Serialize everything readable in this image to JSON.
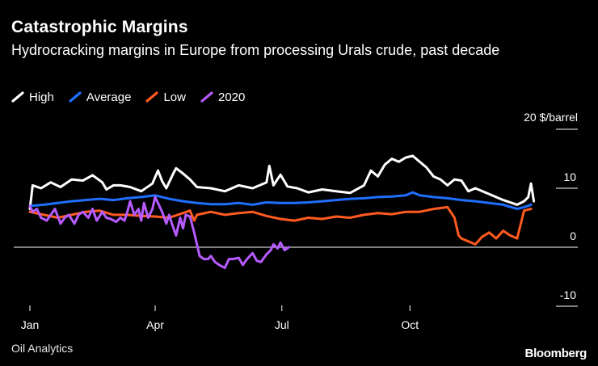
{
  "header": {
    "title": "Catastrophic Margins",
    "subtitle": "Hydrocracking margins in Europe from processing Urals crude, past decade"
  },
  "footer": {
    "source": "Oil Analytics",
    "brand": "Bloomberg"
  },
  "colors": {
    "background": "#000000",
    "high": "#ffffff",
    "average": "#1f6fff",
    "low": "#ff5a1f",
    "y2020": "#b65bff",
    "grid": "#ffffff"
  },
  "chart_data": {
    "type": "line",
    "title": "Catastrophic Margins",
    "subtitle": "Hydrocracking margins in Europe from processing Urals crude, past decade",
    "unit_label": "20 $/barrel",
    "x_ticks": [
      "Jan",
      "Apr",
      "Jul",
      "Oct"
    ],
    "x_tick_days": [
      0,
      90,
      181,
      273
    ],
    "xlim": [
      0,
      364
    ],
    "y_ticks": [
      {
        "value": 10,
        "label": "10"
      },
      {
        "value": 0,
        "label": "0"
      },
      {
        "value": -10,
        "label": "-10"
      }
    ],
    "ylim": [
      -10,
      20
    ],
    "zero_line": true,
    "legend_position": "top-left",
    "series": [
      {
        "name": "High",
        "color_key": "high",
        "x": [
          0,
          2,
          8,
          15,
          22,
          30,
          38,
          45,
          52,
          55,
          60,
          65,
          72,
          80,
          88,
          92,
          95,
          98,
          103,
          105,
          110,
          115,
          120,
          130,
          140,
          150,
          160,
          165,
          170,
          172,
          175,
          180,
          185,
          192,
          200,
          210,
          220,
          230,
          240,
          245,
          250,
          255,
          260,
          265,
          270,
          275,
          280,
          285,
          290,
          295,
          300,
          305,
          310,
          315,
          320,
          330,
          340,
          350,
          355,
          358,
          360,
          362
        ],
        "values": [
          6.5,
          10.5,
          10,
          11,
          10.2,
          11.5,
          11.3,
          12.2,
          11,
          9.8,
          10.5,
          10.5,
          10.2,
          9.5,
          10.8,
          13,
          11.2,
          10,
          12.5,
          13.4,
          12.5,
          11.5,
          10.2,
          10,
          9.5,
          10.5,
          10,
          10.5,
          11,
          13.8,
          10.5,
          12.3,
          10.3,
          10,
          9.3,
          9.8,
          9.5,
          9.2,
          10.5,
          13,
          12,
          14,
          15,
          14.5,
          15.2,
          15.5,
          14.5,
          13.5,
          12,
          11.5,
          10.5,
          11.5,
          11.3,
          9.5,
          10,
          9,
          8,
          7.2,
          7.8,
          8.5,
          10.8,
          7.8
        ]
      },
      {
        "name": "Average",
        "color_key": "average",
        "x": [
          0,
          10,
          20,
          30,
          40,
          50,
          60,
          70,
          80,
          90,
          100,
          110,
          120,
          130,
          140,
          150,
          160,
          170,
          180,
          190,
          200,
          210,
          220,
          230,
          240,
          250,
          260,
          270,
          275,
          280,
          290,
          300,
          310,
          320,
          330,
          340,
          350,
          355,
          360
        ],
        "values": [
          7,
          7.2,
          7.5,
          7.8,
          8,
          8.2,
          8,
          8.3,
          8.5,
          8.8,
          8.2,
          7.8,
          7.5,
          7.3,
          7.3,
          7.5,
          7.2,
          7.6,
          7.5,
          7.5,
          7.6,
          7.8,
          8,
          8.2,
          8.3,
          8.5,
          8.6,
          8.8,
          9.3,
          8.8,
          8.5,
          8.3,
          8,
          7.8,
          7.5,
          7.2,
          6.5,
          6.8,
          7.2
        ]
      },
      {
        "name": "Low",
        "color_key": "low",
        "x": [
          0,
          10,
          20,
          30,
          40,
          50,
          60,
          70,
          80,
          90,
          100,
          110,
          115,
          118,
          120,
          130,
          140,
          150,
          160,
          170,
          180,
          190,
          200,
          210,
          220,
          230,
          240,
          250,
          260,
          270,
          280,
          290,
          300,
          305,
          308,
          310,
          315,
          320,
          325,
          330,
          335,
          340,
          345,
          350,
          355,
          360
        ],
        "values": [
          6,
          5.5,
          5,
          5.5,
          6,
          6.2,
          5.5,
          5.5,
          5.3,
          5.2,
          5,
          5.8,
          6.2,
          4.5,
          5.5,
          6,
          5.5,
          5.8,
          6,
          5.3,
          4.8,
          4.5,
          5,
          4.8,
          5.2,
          5,
          5.5,
          5.8,
          5.6,
          6,
          6,
          6.5,
          6.8,
          5,
          2,
          1.5,
          1,
          0.5,
          1.8,
          2.5,
          1.5,
          2.8,
          2,
          1.5,
          6.2,
          6.5
        ]
      },
      {
        "name": "2020",
        "color_key": "y2020",
        "x": [
          0,
          2,
          5,
          8,
          12,
          15,
          18,
          22,
          25,
          28,
          32,
          35,
          38,
          42,
          45,
          48,
          52,
          55,
          58,
          62,
          65,
          68,
          70,
          72,
          75,
          78,
          80,
          82,
          85,
          88,
          90,
          92,
          95,
          98,
          100,
          102,
          105,
          108,
          110,
          112,
          115,
          118,
          120,
          122,
          125,
          128,
          130,
          133,
          136,
          140,
          143,
          146,
          150,
          153,
          156,
          160,
          163,
          166,
          170,
          173,
          175,
          178,
          180,
          183,
          186
        ],
        "values": [
          7,
          6,
          6.5,
          5,
          4.5,
          5.5,
          6.5,
          4,
          5,
          5.5,
          4,
          5.5,
          6,
          5,
          6.5,
          4.5,
          6,
          5,
          4.8,
          4.3,
          5,
          4.5,
          6,
          7.8,
          5.5,
          6.5,
          4.5,
          7.5,
          5,
          6.5,
          8.5,
          7.5,
          6,
          4,
          5.5,
          4,
          2,
          5,
          3.2,
          5.5,
          5.2,
          2.5,
          0.5,
          -1.5,
          -2,
          -2,
          -1.5,
          -2.5,
          -3,
          -3.5,
          -2,
          -2,
          -1.8,
          -3,
          -2,
          -1,
          -2.3,
          -2.5,
          -1.2,
          -0.5,
          0.5,
          -0.2,
          0.8,
          -0.5,
          0
        ]
      }
    ]
  }
}
